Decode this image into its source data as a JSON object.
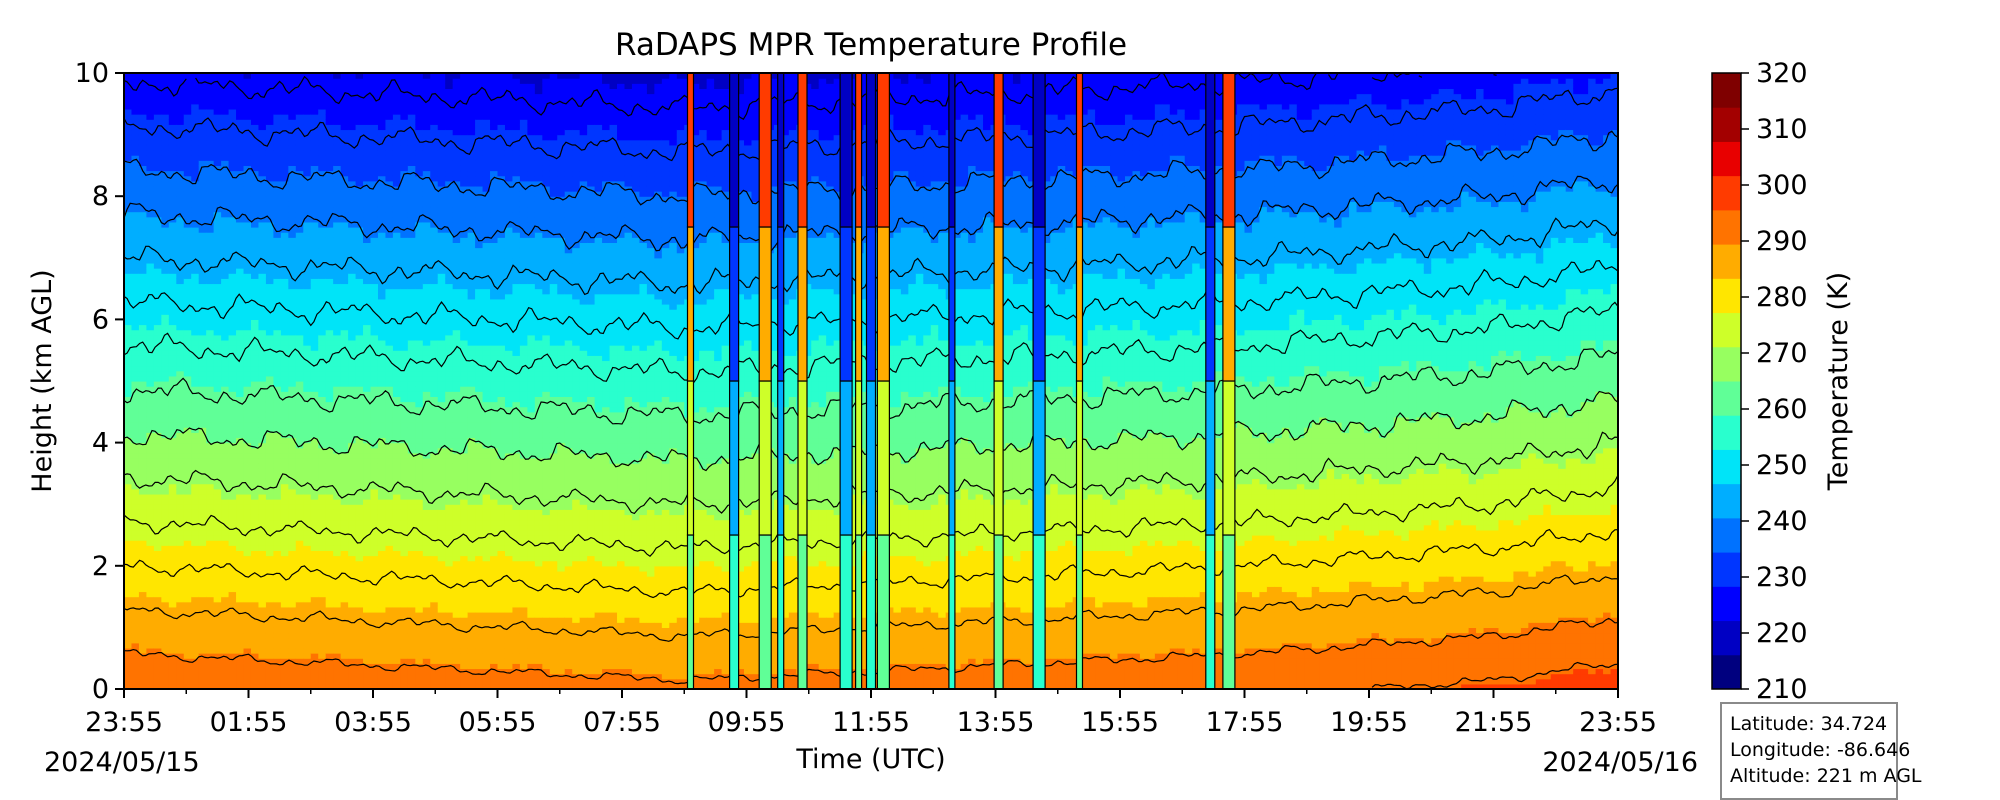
{
  "chart_data": {
    "type": "heatmap",
    "title": "RaDAPS MPR Temperature Profile",
    "xlabel": "Time (UTC)",
    "ylabel": "Height (km AGL)",
    "colorbar_label": "Temperature (K)",
    "x_ticks": [
      "23:55",
      "01:55",
      "03:55",
      "05:55",
      "07:55",
      "09:55",
      "11:55",
      "13:55",
      "15:55",
      "17:55",
      "19:55",
      "21:55",
      "23:55"
    ],
    "x_range_hours": [
      0,
      24
    ],
    "start_date": "2024/05/15",
    "end_date": "2024/05/16",
    "y_ticks": [
      0,
      2,
      4,
      6,
      8,
      10
    ],
    "ylim": [
      0,
      10
    ],
    "colorbar_ticks": [
      210,
      220,
      230,
      240,
      250,
      260,
      270,
      280,
      290,
      300,
      310,
      320
    ],
    "clim": [
      210,
      320
    ],
    "contour_interval": 5,
    "lapse_rate_k_per_km": 7.0,
    "surface_temperature_k": {
      "hours": [
        0,
        6,
        9,
        12,
        15,
        18,
        22,
        24
      ],
      "values": [
        294,
        292,
        291,
        292,
        293,
        294,
        296,
        298
      ]
    },
    "precip_spike_hours": [
      9.1,
      9.8,
      10.3,
      10.55,
      10.9,
      11.6,
      11.8,
      12.0,
      12.2,
      13.3,
      14.05,
      14.7,
      15.35,
      17.45,
      17.75
    ],
    "colormap": [
      "#00007f",
      "#0000c4",
      "#0000ff",
      "#0036ff",
      "#0072ff",
      "#00aeff",
      "#00e4f8",
      "#29ffce",
      "#60ff97",
      "#97ff60",
      "#ceff29",
      "#ffe600",
      "#ffac00",
      "#ff7300",
      "#ff3b00",
      "#e80000",
      "#a30000",
      "#7f0000"
    ]
  },
  "station": {
    "latitude": "Latitude: 34.724",
    "longitude": "Longitude: -86.646",
    "altitude": "Altitude: 221 m AGL"
  }
}
